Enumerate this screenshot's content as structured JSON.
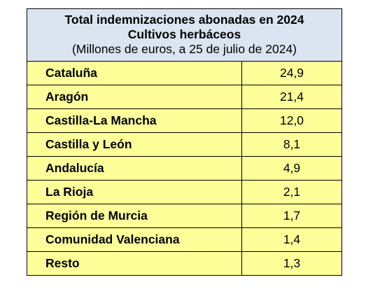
{
  "table": {
    "title_line1": "Total indemnizaciones abonadas en 2024",
    "title_line2": "Cultivos herbáceos",
    "title_line3": "(Millones de euros, a 25 de julio de 2024)",
    "rows": [
      {
        "region": "Cataluña",
        "value": "24,9"
      },
      {
        "region": "Aragón",
        "value": "21,4"
      },
      {
        "region": "Castilla-La Mancha",
        "value": "12,0"
      },
      {
        "region": "Castilla y León",
        "value": "8,1"
      },
      {
        "region": "Andalucía",
        "value": "4,9"
      },
      {
        "region": "La Rioja",
        "value": "2,1"
      },
      {
        "region": "Región de Murcia",
        "value": "1,7"
      },
      {
        "region": "Comunidad Valenciana",
        "value": "1,4"
      },
      {
        "region": "Resto",
        "value": "1,3"
      }
    ]
  }
}
